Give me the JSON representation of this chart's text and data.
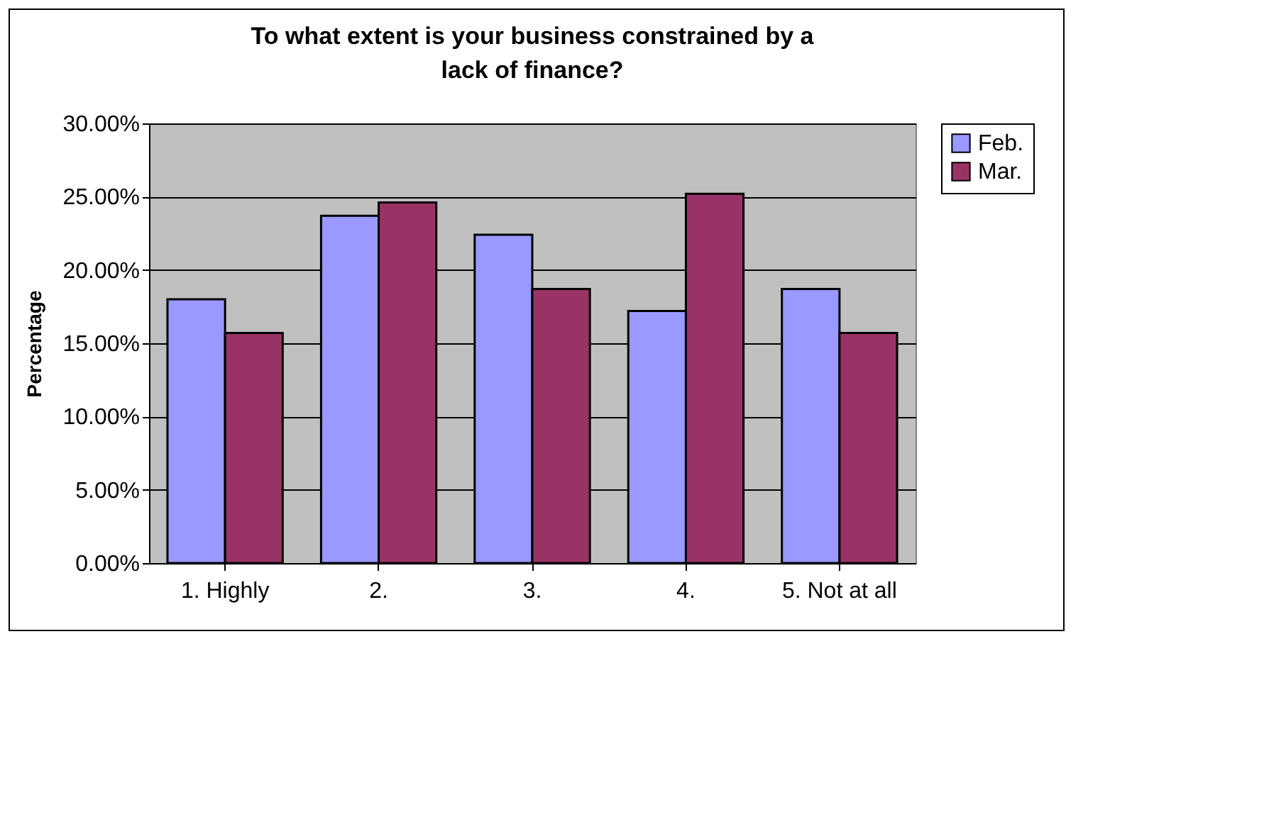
{
  "chart_data": {
    "type": "bar",
    "title": "To what extent is your business constrained by a lack of finance?",
    "ylabel": "Percentage",
    "categories": [
      "1. Highly",
      "2.",
      "3.",
      "4.",
      "5. Not at all"
    ],
    "series": [
      {
        "name": "Feb.",
        "color": "#9999ff",
        "values": [
          18.0,
          23.7,
          22.4,
          17.2,
          18.7
        ]
      },
      {
        "name": "Mar.",
        "color": "#993366",
        "values": [
          15.7,
          24.6,
          18.7,
          25.2,
          15.7
        ]
      }
    ],
    "ylim": [
      0,
      30
    ],
    "yticks": [
      {
        "value": 0,
        "label": "0.00%"
      },
      {
        "value": 5,
        "label": "5.00%"
      },
      {
        "value": 10,
        "label": "10.00%"
      },
      {
        "value": 15,
        "label": "15.00%"
      },
      {
        "value": 20,
        "label": "20.00%"
      },
      {
        "value": 25,
        "label": "25.00%"
      },
      {
        "value": 30,
        "label": "30.00%"
      }
    ],
    "grid": "y",
    "legend": "right"
  }
}
